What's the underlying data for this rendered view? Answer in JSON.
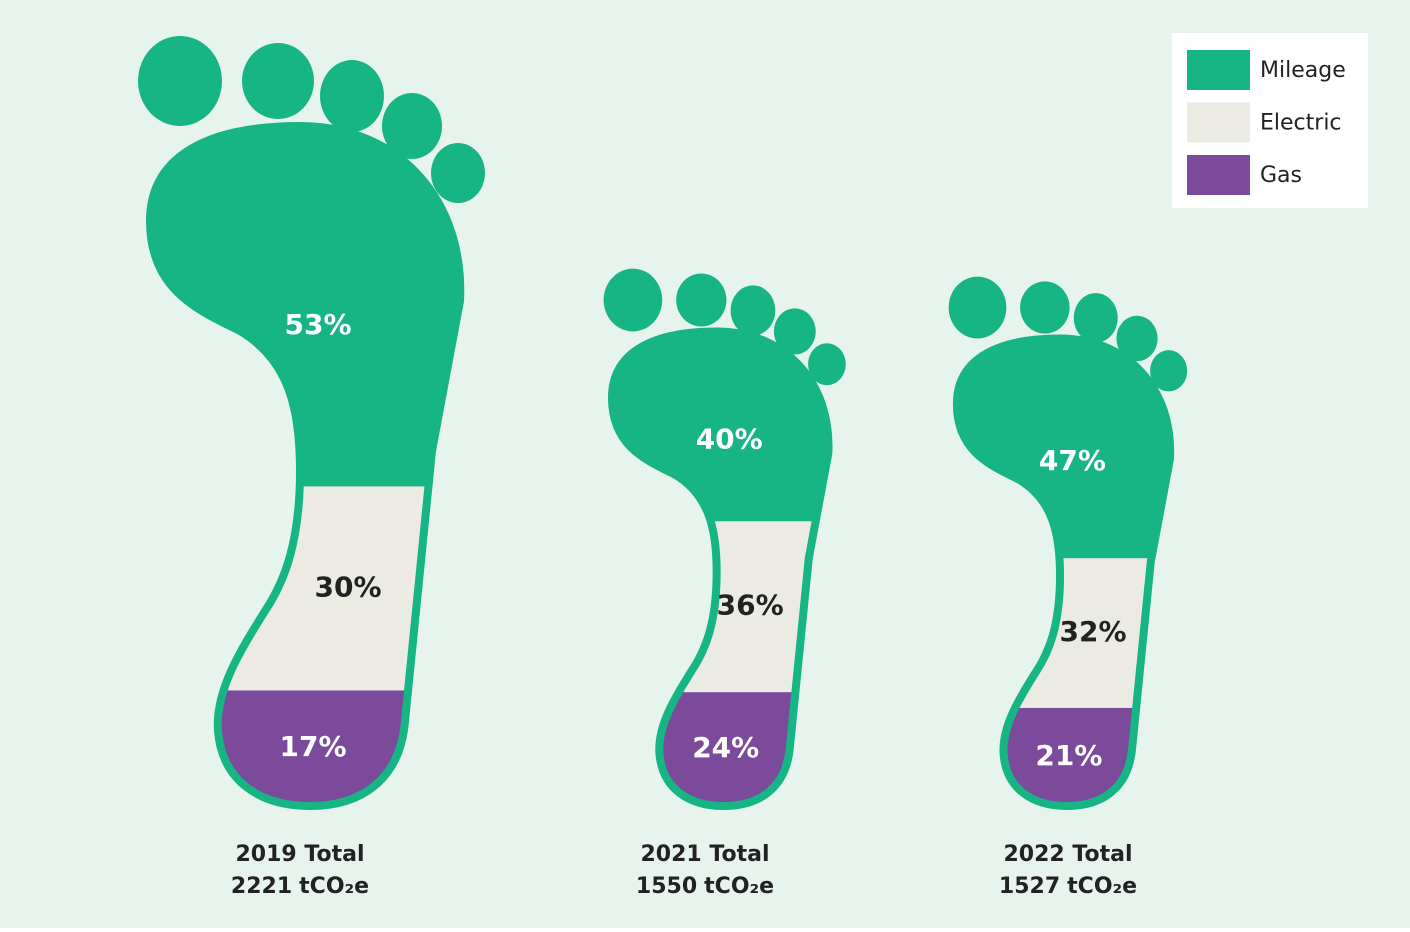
{
  "chart_data": {
    "type": "footprint",
    "categories": [
      "2019 Total",
      "2021 Total",
      "2022 Total"
    ],
    "totals": [
      2221,
      1550,
      1527
    ],
    "total_unit": "tCO₂e",
    "series": [
      {
        "name": "Mileage",
        "color": "#17b584",
        "values": [
          53,
          40,
          47
        ],
        "value_labels": [
          "53%",
          "40%",
          "47%"
        ]
      },
      {
        "name": "Electric",
        "color": "#ebebe4",
        "values": [
          30,
          36,
          32
        ],
        "value_labels": [
          "30%",
          "36%",
          "32%"
        ]
      },
      {
        "name": "Gas",
        "color": "#7b4a9b",
        "values": [
          17,
          24,
          21
        ],
        "value_labels": [
          "17%",
          "24%",
          "21%"
        ]
      }
    ],
    "legend": "top-right"
  }
}
